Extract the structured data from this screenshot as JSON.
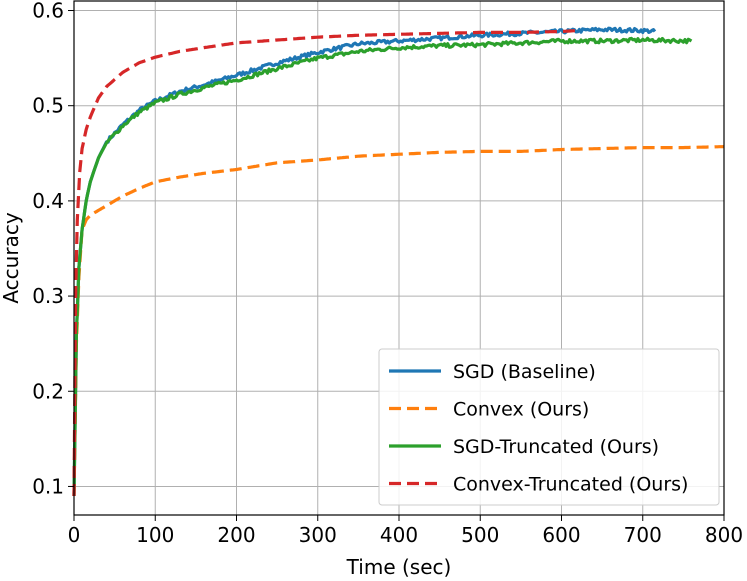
{
  "chart_data": {
    "type": "line",
    "title": "",
    "xlabel": "Time (sec)",
    "ylabel": "Accuracy",
    "xlim": [
      0,
      800
    ],
    "ylim": [
      0.07,
      0.61
    ],
    "xticks": [
      0,
      100,
      200,
      300,
      400,
      500,
      600,
      700,
      800
    ],
    "xtick_labels": [
      "0",
      "100",
      "200",
      "300",
      "400",
      "500",
      "600",
      "700",
      "800"
    ],
    "yticks": [
      0.1,
      0.2,
      0.3,
      0.4,
      0.5,
      0.6
    ],
    "ytick_labels": [
      "0.1",
      "0.2",
      "0.3",
      "0.4",
      "0.5",
      "0.6"
    ],
    "grid": true,
    "legend_position": "lower-right",
    "series": [
      {
        "name": "SGD (Baseline)",
        "color": "#1f77b4",
        "style": "solid",
        "x": [
          0,
          3,
          6,
          10,
          15,
          20,
          30,
          40,
          60,
          80,
          100,
          130,
          160,
          200,
          250,
          300,
          350,
          400,
          450,
          500,
          550,
          600,
          650,
          700,
          715
        ],
        "y": [
          0.09,
          0.26,
          0.33,
          0.37,
          0.4,
          0.42,
          0.445,
          0.462,
          0.48,
          0.495,
          0.505,
          0.515,
          0.522,
          0.532,
          0.545,
          0.556,
          0.565,
          0.568,
          0.571,
          0.574,
          0.576,
          0.578,
          0.58,
          0.579,
          0.578
        ]
      },
      {
        "name": "Convex (Ours)",
        "color": "#ff7f0e",
        "style": "dashed",
        "x": [
          0,
          3,
          6,
          10,
          15,
          20,
          40,
          60,
          80,
          100,
          130,
          160,
          200,
          250,
          300,
          350,
          400,
          450,
          500,
          550,
          600,
          650,
          700,
          750,
          800
        ],
        "y": [
          0.09,
          0.25,
          0.32,
          0.37,
          0.38,
          0.385,
          0.395,
          0.405,
          0.413,
          0.42,
          0.425,
          0.429,
          0.433,
          0.44,
          0.443,
          0.447,
          0.449,
          0.451,
          0.452,
          0.452,
          0.454,
          0.455,
          0.456,
          0.456,
          0.457
        ]
      },
      {
        "name": "SGD-Truncated (Ours)",
        "color": "#2ca02c",
        "style": "solid",
        "x": [
          0,
          3,
          6,
          10,
          15,
          20,
          30,
          40,
          60,
          80,
          100,
          130,
          160,
          200,
          250,
          300,
          350,
          400,
          450,
          500,
          550,
          600,
          650,
          700,
          760
        ],
        "y": [
          0.09,
          0.26,
          0.33,
          0.37,
          0.4,
          0.42,
          0.445,
          0.461,
          0.479,
          0.493,
          0.503,
          0.512,
          0.519,
          0.527,
          0.539,
          0.55,
          0.557,
          0.561,
          0.563,
          0.564,
          0.566,
          0.568,
          0.568,
          0.569,
          0.568
        ]
      },
      {
        "name": "Convex-Truncated (Ours)",
        "color": "#d62728",
        "style": "dashed",
        "x": [
          0,
          2,
          4,
          7,
          10,
          15,
          20,
          30,
          40,
          60,
          80,
          100,
          130,
          160,
          200,
          250,
          300,
          350,
          400,
          450,
          500,
          550,
          600,
          620
        ],
        "y": [
          0.09,
          0.3,
          0.38,
          0.43,
          0.455,
          0.475,
          0.488,
          0.508,
          0.52,
          0.535,
          0.545,
          0.551,
          0.557,
          0.561,
          0.566,
          0.569,
          0.572,
          0.574,
          0.575,
          0.576,
          0.577,
          0.577,
          0.578,
          0.579
        ]
      }
    ]
  }
}
